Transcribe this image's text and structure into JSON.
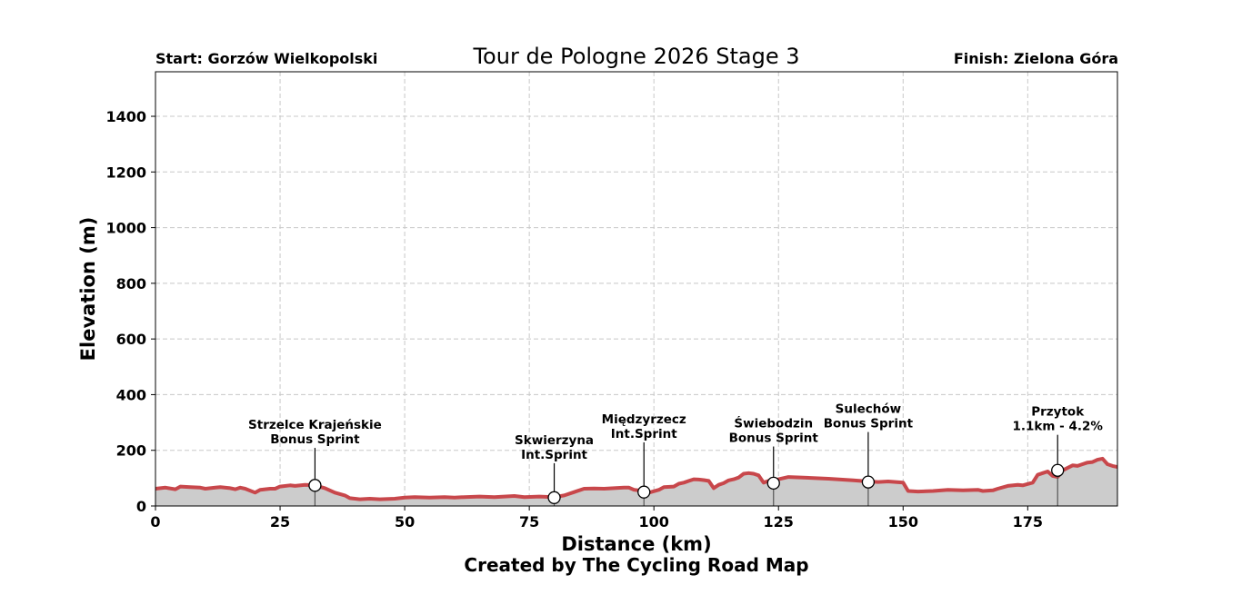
{
  "chart_data": {
    "type": "area",
    "title": "Tour de Pologne 2026 Stage 3",
    "start_label": "Start: Gorzów Wielkopolski",
    "finish_label": "Finish: Zielona Góra",
    "xlabel": "Distance (km)",
    "ylabel": "Elevation (m)",
    "credit": "Created by The Cycling Road Map",
    "xlim": [
      0,
      193
    ],
    "ylim": [
      0,
      1560
    ],
    "xticks": [
      0,
      25,
      50,
      75,
      100,
      125,
      150,
      175
    ],
    "yticks": [
      0,
      200,
      400,
      600,
      800,
      1000,
      1200,
      1400
    ],
    "grid": true,
    "line_color": "#c8474b",
    "fill_color": "#cccccc",
    "profile": [
      [
        0,
        62
      ],
      [
        2,
        66
      ],
      [
        4,
        60
      ],
      [
        5,
        70
      ],
      [
        7,
        68
      ],
      [
        9,
        66
      ],
      [
        10,
        62
      ],
      [
        12,
        66
      ],
      [
        13,
        68
      ],
      [
        15,
        64
      ],
      [
        16,
        60
      ],
      [
        17,
        66
      ],
      [
        18,
        62
      ],
      [
        20,
        48
      ],
      [
        21,
        58
      ],
      [
        23,
        62
      ],
      [
        24,
        62
      ],
      [
        25,
        70
      ],
      [
        27,
        74
      ],
      [
        28,
        72
      ],
      [
        30,
        76
      ],
      [
        32,
        74
      ],
      [
        34,
        64
      ],
      [
        36,
        48
      ],
      [
        38,
        38
      ],
      [
        39,
        28
      ],
      [
        41,
        24
      ],
      [
        43,
        26
      ],
      [
        45,
        24
      ],
      [
        48,
        26
      ],
      [
        50,
        30
      ],
      [
        52,
        32
      ],
      [
        55,
        30
      ],
      [
        58,
        32
      ],
      [
        60,
        30
      ],
      [
        62,
        32
      ],
      [
        65,
        34
      ],
      [
        68,
        32
      ],
      [
        70,
        34
      ],
      [
        72,
        36
      ],
      [
        74,
        32
      ],
      [
        77,
        34
      ],
      [
        80,
        32
      ],
      [
        82,
        38
      ],
      [
        84,
        50
      ],
      [
        86,
        62
      ],
      [
        88,
        63
      ],
      [
        90,
        62
      ],
      [
        92,
        64
      ],
      [
        94,
        66
      ],
      [
        95,
        66
      ],
      [
        96,
        58
      ],
      [
        98,
        54
      ],
      [
        99,
        48
      ],
      [
        101,
        58
      ],
      [
        102,
        68
      ],
      [
        104,
        70
      ],
      [
        105,
        80
      ],
      [
        106,
        84
      ],
      [
        107,
        90
      ],
      [
        108,
        96
      ],
      [
        109,
        95
      ],
      [
        110,
        93
      ],
      [
        111,
        90
      ],
      [
        112,
        64
      ],
      [
        113,
        76
      ],
      [
        114,
        82
      ],
      [
        115,
        92
      ],
      [
        116,
        96
      ],
      [
        117,
        102
      ],
      [
        118,
        116
      ],
      [
        119,
        118
      ],
      [
        120,
        116
      ],
      [
        121,
        110
      ],
      [
        122,
        84
      ],
      [
        123,
        90
      ],
      [
        124,
        86
      ],
      [
        125,
        96
      ],
      [
        127,
        104
      ],
      [
        130,
        102
      ],
      [
        135,
        98
      ],
      [
        140,
        92
      ],
      [
        143,
        88
      ],
      [
        145,
        86
      ],
      [
        147,
        88
      ],
      [
        150,
        84
      ],
      [
        151,
        54
      ],
      [
        153,
        52
      ],
      [
        156,
        54
      ],
      [
        159,
        58
      ],
      [
        162,
        56
      ],
      [
        165,
        58
      ],
      [
        166,
        54
      ],
      [
        168,
        56
      ],
      [
        169,
        62
      ],
      [
        171,
        72
      ],
      [
        173,
        76
      ],
      [
        174,
        74
      ],
      [
        176,
        84
      ],
      [
        177,
        112
      ],
      [
        178,
        118
      ],
      [
        179,
        124
      ],
      [
        180,
        108
      ],
      [
        181,
        104
      ],
      [
        182,
        128
      ],
      [
        184,
        146
      ],
      [
        185,
        144
      ],
      [
        186,
        150
      ],
      [
        187,
        156
      ],
      [
        188,
        158
      ],
      [
        189,
        166
      ],
      [
        190,
        170
      ],
      [
        191,
        150
      ],
      [
        192,
        144
      ],
      [
        193,
        140
      ]
    ],
    "annotations": [
      {
        "lines": [
          "Strzelce Krajeńskie",
          "Bonus Sprint"
        ],
        "x": 32,
        "y": 74,
        "label_y": 225
      },
      {
        "lines": [
          "Skwierzyna",
          "Int.Sprint"
        ],
        "x": 80,
        "y": 30,
        "label_y": 170
      },
      {
        "lines": [
          "Międzyrzecz",
          "Int.Sprint"
        ],
        "x": 98,
        "y": 50,
        "label_y": 245
      },
      {
        "lines": [
          "Świebodzin",
          "Bonus Sprint"
        ],
        "x": 124,
        "y": 82,
        "label_y": 230
      },
      {
        "lines": [
          "Sulechów",
          "Bonus Sprint"
        ],
        "x": 143,
        "y": 86,
        "label_y": 282
      },
      {
        "lines": [
          "Przytok",
          "1.1km - 4.2%"
        ],
        "x": 181,
        "y": 128,
        "label_y": 272
      }
    ]
  }
}
